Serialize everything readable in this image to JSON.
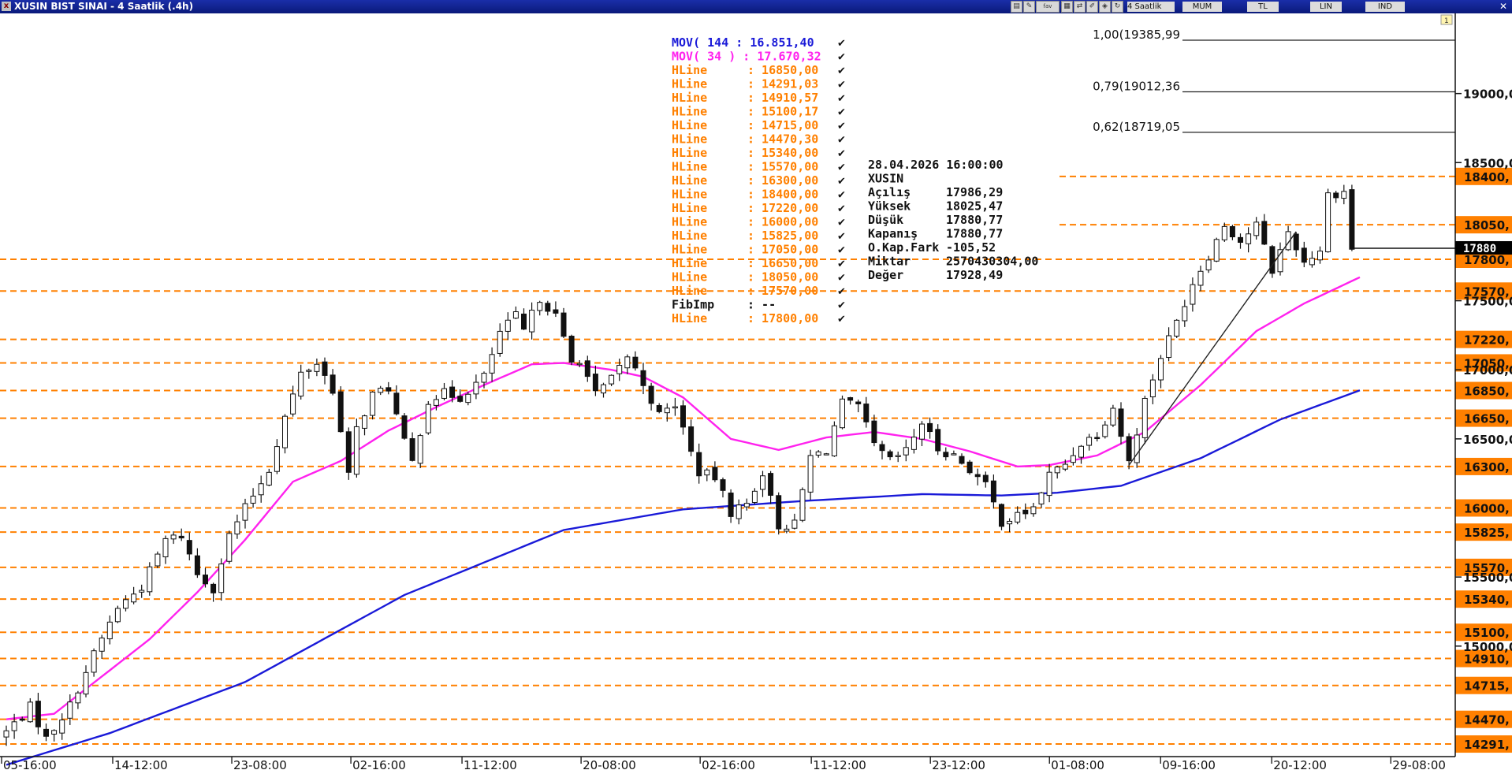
{
  "window": {
    "title": "XUSIN BIST SINAI - 4 Saatlik (.4h)",
    "toolbar": {
      "period": "4 Saatlik",
      "chart_style": "MUM",
      "currency": "TL",
      "scale": "LIN",
      "mode": "IND"
    }
  },
  "colors": {
    "orange": "#ff8000",
    "ma144": "#1a1ad8",
    "ma34": "#ff22ee",
    "title_bg": "#0a1a7a"
  },
  "legend": {
    "mov144": "MOV( 144 : 16.851,40",
    "mov34": "MOV( 34 ) : 17.670,32",
    "hlines": [
      {
        "label": "HLine",
        "value": ": 16850,00"
      },
      {
        "label": "HLine",
        "value": ": 14291,03"
      },
      {
        "label": "HLine",
        "value": ": 14910,57"
      },
      {
        "label": "HLine",
        "value": ": 15100,17"
      },
      {
        "label": "HLine",
        "value": ": 14715,00"
      },
      {
        "label": "HLine",
        "value": ": 14470,30"
      },
      {
        "label": "HLine",
        "value": ": 15340,00"
      },
      {
        "label": "HLine",
        "value": ": 15570,00"
      },
      {
        "label": "HLine",
        "value": ": 16300,00"
      },
      {
        "label": "HLine",
        "value": ": 18400,00"
      },
      {
        "label": "HLine",
        "value": ": 17220,00"
      },
      {
        "label": "HLine",
        "value": ": 16000,00"
      },
      {
        "label": "HLine",
        "value": ": 15825,00"
      },
      {
        "label": "HLine",
        "value": ": 17050,00"
      },
      {
        "label": "HLine",
        "value": ": 16650,00"
      },
      {
        "label": "HLine",
        "value": ": 18050,00"
      },
      {
        "label": "HLine",
        "value": ": 17570,00"
      }
    ],
    "fibimp": {
      "label": "FibImp",
      "value": ": --"
    },
    "last_hline": {
      "label": "HLine",
      "value": ": 17800,00"
    }
  },
  "info_box": {
    "datetime": "28.04.2026  16:00:00",
    "symbol": "XUSIN",
    "rows": [
      {
        "label": "Açılış",
        "value": "17986,29"
      },
      {
        "label": "Yüksek",
        "value": "18025,47"
      },
      {
        "label": "Düşük",
        "value": "17880,77"
      },
      {
        "label": "Kapanış",
        "value": "17880,77"
      },
      {
        "label": "O.Kap.Fark",
        "value": "-105,52"
      },
      {
        "label": "Miktar",
        "value": "2570430304,00"
      },
      {
        "label": "Değer",
        "value": "17928,49"
      }
    ]
  },
  "chart_data": {
    "type": "candlestick",
    "symbol": "XUSIN",
    "interval": "4h",
    "y_axis": {
      "range": [
        14200,
        19580
      ],
      "ticks": [
        {
          "value": 19000,
          "label": "19000,0"
        },
        {
          "value": 18500,
          "label": "18500,0"
        },
        {
          "value": 17500,
          "label": "17500,0"
        },
        {
          "value": 17000,
          "label": "17000,0"
        },
        {
          "value": 16500,
          "label": "16500,0"
        },
        {
          "value": 15500,
          "label": "15500,0"
        },
        {
          "value": 15000,
          "label": "15000,0"
        }
      ]
    },
    "x_axis": {
      "bar_count": 170,
      "labels": [
        {
          "bar": 0,
          "label": "05-16:00"
        },
        {
          "bar": 14,
          "label": "14-12:00"
        },
        {
          "bar": 29,
          "label": "23-08:00"
        },
        {
          "bar": 44,
          "label": "02-16:00"
        },
        {
          "bar": 58,
          "label": "11-12:00"
        },
        {
          "bar": 73,
          "label": "20-08:00"
        },
        {
          "bar": 88,
          "label": "02-16:00"
        },
        {
          "bar": 102,
          "label": "11-12:00"
        },
        {
          "bar": 117,
          "label": "23-12:00"
        },
        {
          "bar": 132,
          "label": "01-08:00"
        },
        {
          "bar": 146,
          "label": "09-16:00"
        },
        {
          "bar": 160,
          "label": "20-12:00"
        },
        {
          "bar": 175,
          "label": "29-08:00"
        }
      ]
    },
    "hlines": [
      {
        "value": 18400,
        "label": "18400,"
      },
      {
        "value": 18050,
        "label": "18050,"
      },
      {
        "value": 17800,
        "label": "17800,"
      },
      {
        "value": 17570,
        "label": "17570,"
      },
      {
        "value": 17220,
        "label": "17220,"
      },
      {
        "value": 17050,
        "label": "17050,"
      },
      {
        "value": 16850,
        "label": "16850,"
      },
      {
        "value": 16650,
        "label": "16650,"
      },
      {
        "value": 16300,
        "label": "16300,"
      },
      {
        "value": 16000,
        "label": "16000,"
      },
      {
        "value": 15825,
        "label": "15825,"
      },
      {
        "value": 15570,
        "label": "15570,"
      },
      {
        "value": 15340,
        "label": "15340,"
      },
      {
        "value": 15100,
        "label": "15100,"
      },
      {
        "value": 14910,
        "label": "14910,"
      },
      {
        "value": 14715,
        "label": "14715,"
      },
      {
        "value": 14470,
        "label": "14470,"
      },
      {
        "value": 14291,
        "label": "14291,"
      }
    ],
    "fib_levels": [
      {
        "value": 19385.99,
        "label": "1,00(19385,99"
      },
      {
        "value": 19012.36,
        "label": "0,79(19012,36"
      },
      {
        "value": 18719.05,
        "label": "0,62(18719,05"
      }
    ],
    "trendline": {
      "from": {
        "bar": 141,
        "value": 16310
      },
      "to": {
        "bar": 162,
        "value": 18000
      }
    },
    "last_price": {
      "value": 17880,
      "label": "17880"
    },
    "close_anchors": [
      [
        0,
        14380
      ],
      [
        3,
        14560
      ],
      [
        5,
        14330
      ],
      [
        8,
        14570
      ],
      [
        11,
        14940
      ],
      [
        14,
        15280
      ],
      [
        17,
        15430
      ],
      [
        20,
        15770
      ],
      [
        22,
        15800
      ],
      [
        24,
        15520
      ],
      [
        26,
        15420
      ],
      [
        28,
        15800
      ],
      [
        30,
        16000
      ],
      [
        33,
        16280
      ],
      [
        35,
        16660
      ],
      [
        37,
        16970
      ],
      [
        39,
        17050
      ],
      [
        41,
        16860
      ],
      [
        43,
        16230
      ],
      [
        44,
        16570
      ],
      [
        46,
        16820
      ],
      [
        48,
        16870
      ],
      [
        50,
        16470
      ],
      [
        51,
        16330
      ],
      [
        53,
        16780
      ],
      [
        55,
        16830
      ],
      [
        57,
        16800
      ],
      [
        60,
        16950
      ],
      [
        62,
        17270
      ],
      [
        64,
        17390
      ],
      [
        65,
        17280
      ],
      [
        67,
        17520
      ],
      [
        69,
        17390
      ],
      [
        71,
        17050
      ],
      [
        72,
        17080
      ],
      [
        74,
        16820
      ],
      [
        76,
        16930
      ],
      [
        78,
        17100
      ],
      [
        80,
        16900
      ],
      [
        82,
        16670
      ],
      [
        84,
        16750
      ],
      [
        86,
        16400
      ],
      [
        87,
        16260
      ],
      [
        89,
        16220
      ],
      [
        91,
        15970
      ],
      [
        93,
        16030
      ],
      [
        95,
        16260
      ],
      [
        97,
        15870
      ],
      [
        99,
        15880
      ],
      [
        101,
        16370
      ],
      [
        103,
        16420
      ],
      [
        105,
        16760
      ],
      [
        107,
        16730
      ],
      [
        109,
        16450
      ],
      [
        111,
        16340
      ],
      [
        113,
        16410
      ],
      [
        115,
        16620
      ],
      [
        117,
        16430
      ],
      [
        119,
        16380
      ],
      [
        121,
        16280
      ],
      [
        123,
        16160
      ],
      [
        125,
        15900
      ],
      [
        127,
        15940
      ],
      [
        129,
        16000
      ],
      [
        131,
        16240
      ],
      [
        133,
        16320
      ],
      [
        135,
        16470
      ],
      [
        137,
        16540
      ],
      [
        139,
        16730
      ],
      [
        141,
        16330
      ],
      [
        143,
        16780
      ],
      [
        145,
        17100
      ],
      [
        147,
        17350
      ],
      [
        149,
        17630
      ],
      [
        151,
        17830
      ],
      [
        153,
        18050
      ],
      [
        155,
        17930
      ],
      [
        157,
        18050
      ],
      [
        159,
        17720
      ],
      [
        161,
        18000
      ],
      [
        163,
        17780
      ],
      [
        165,
        17870
      ],
      [
        166,
        18270
      ],
      [
        168,
        18290
      ],
      [
        169,
        17880
      ]
    ],
    "ma144_anchors": [
      [
        0,
        14140
      ],
      [
        13,
        14370
      ],
      [
        30,
        14740
      ],
      [
        50,
        15370
      ],
      [
        70,
        15840
      ],
      [
        85,
        15990
      ],
      [
        100,
        16050
      ],
      [
        115,
        16100
      ],
      [
        125,
        16090
      ],
      [
        132,
        16110
      ],
      [
        140,
        16160
      ],
      [
        150,
        16360
      ],
      [
        160,
        16640
      ],
      [
        170,
        16851
      ]
    ],
    "ma34_anchors": [
      [
        0,
        14470
      ],
      [
        6,
        14510
      ],
      [
        12,
        14780
      ],
      [
        18,
        15050
      ],
      [
        24,
        15390
      ],
      [
        30,
        15770
      ],
      [
        36,
        16190
      ],
      [
        42,
        16340
      ],
      [
        48,
        16560
      ],
      [
        54,
        16730
      ],
      [
        60,
        16890
      ],
      [
        66,
        17040
      ],
      [
        70,
        17050
      ],
      [
        76,
        17000
      ],
      [
        80,
        16950
      ],
      [
        85,
        16800
      ],
      [
        91,
        16500
      ],
      [
        97,
        16420
      ],
      [
        103,
        16510
      ],
      [
        109,
        16550
      ],
      [
        115,
        16500
      ],
      [
        121,
        16410
      ],
      [
        127,
        16300
      ],
      [
        131,
        16310
      ],
      [
        137,
        16380
      ],
      [
        143,
        16550
      ],
      [
        150,
        16890
      ],
      [
        157,
        17280
      ],
      [
        163,
        17480
      ],
      [
        170,
        17670
      ]
    ]
  }
}
